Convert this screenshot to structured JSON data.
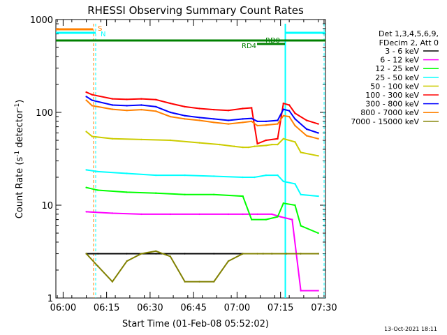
{
  "chart_data": {
    "type": "line",
    "title": "RHESSI Observing Summary Count Rates",
    "xlabel": "Start Time (01-Feb-08 05:52:02)",
    "ylabel_main": "Count Rate (s",
    "ylabel_sup1": "-1",
    "ylabel_mid": " detector",
    "ylabel_sup2": "-1",
    "ylabel_end": ")",
    "yscale": "log",
    "ylim": [
      1,
      1000
    ],
    "xlim_minutes": [
      5.5,
      98.5
    ],
    "x_ticks": [
      {
        "m": 8,
        "label": "06:00"
      },
      {
        "m": 23,
        "label": "06:15"
      },
      {
        "m": 38,
        "label": "06:30"
      },
      {
        "m": 53,
        "label": "06:45"
      },
      {
        "m": 68,
        "label": "07:00"
      },
      {
        "m": 83,
        "label": "07:15"
      },
      {
        "m": 98,
        "label": "07:30"
      }
    ],
    "y_ticks": [
      {
        "v": 1,
        "label": "1"
      },
      {
        "v": 10,
        "label": "10"
      },
      {
        "v": 100,
        "label": "100"
      },
      {
        "v": 1000,
        "label": "1000"
      }
    ],
    "legend_header": [
      "Det 1,3,4,5,6,9,",
      "FDecim 2, Att 0"
    ],
    "series": [
      {
        "name": "3 - 6 keV",
        "color": "#000000",
        "points": [
          [
            16,
            3.0
          ],
          [
            20,
            3.0
          ],
          [
            30,
            3.0
          ],
          [
            40,
            3.0
          ],
          [
            50,
            3.0
          ],
          [
            60,
            3.0
          ],
          [
            70,
            3.0
          ],
          [
            77,
            3.0
          ],
          [
            80,
            3.0
          ],
          [
            85,
            3.0
          ],
          [
            90,
            3.0
          ],
          [
            96,
            3.0
          ]
        ]
      },
      {
        "name": "6 - 12 keV",
        "color": "#ff00ff",
        "points": [
          [
            16,
            8.5
          ],
          [
            25,
            8.2
          ],
          [
            35,
            8.0
          ],
          [
            45,
            8.0
          ],
          [
            55,
            8.0
          ],
          [
            65,
            8.0
          ],
          [
            70,
            8.0
          ],
          [
            75,
            8.0
          ],
          [
            80,
            8.0
          ],
          [
            83,
            7.5
          ],
          [
            87,
            7.0
          ],
          [
            90,
            1.2
          ],
          [
            96,
            1.2
          ]
        ]
      },
      {
        "name": "12 - 25 keV",
        "color": "#00ff00",
        "points": [
          [
            16,
            15.5
          ],
          [
            20,
            14.5
          ],
          [
            30,
            13.8
          ],
          [
            40,
            13.5
          ],
          [
            50,
            13.0
          ],
          [
            60,
            13.0
          ],
          [
            70,
            12.5
          ],
          [
            73,
            7.0
          ],
          [
            78,
            7.0
          ],
          [
            82,
            7.5
          ],
          [
            84,
            10.5
          ],
          [
            88,
            10.0
          ],
          [
            90,
            6.0
          ],
          [
            96,
            5.0
          ]
        ]
      },
      {
        "name": "25 - 50 keV",
        "color": "#00ffff",
        "points": [
          [
            16,
            24
          ],
          [
            20,
            23
          ],
          [
            30,
            22
          ],
          [
            40,
            21
          ],
          [
            50,
            21
          ],
          [
            60,
            20.5
          ],
          [
            70,
            20
          ],
          [
            74,
            20
          ],
          [
            78,
            21
          ],
          [
            82,
            21
          ],
          [
            84,
            18
          ],
          [
            88,
            17
          ],
          [
            90,
            13
          ],
          [
            96,
            12.5
          ]
        ]
      },
      {
        "name": "50 - 100 keV",
        "color": "#cccc00",
        "points": [
          [
            16,
            62
          ],
          [
            18,
            55
          ],
          [
            25,
            52
          ],
          [
            35,
            51
          ],
          [
            45,
            50
          ],
          [
            55,
            47
          ],
          [
            62,
            45
          ],
          [
            67,
            43
          ],
          [
            70,
            42
          ],
          [
            72,
            42
          ],
          [
            74,
            43
          ],
          [
            78,
            44
          ],
          [
            80,
            45
          ],
          [
            82,
            45
          ],
          [
            84,
            52
          ],
          [
            88,
            48
          ],
          [
            90,
            37
          ],
          [
            96,
            34
          ]
        ]
      },
      {
        "name": "100 - 300 keV",
        "color": "#ff0000",
        "points": [
          [
            16,
            165
          ],
          [
            18,
            155
          ],
          [
            25,
            140
          ],
          [
            30,
            138
          ],
          [
            35,
            140
          ],
          [
            40,
            137
          ],
          [
            45,
            125
          ],
          [
            50,
            115
          ],
          [
            55,
            110
          ],
          [
            60,
            107
          ],
          [
            65,
            105
          ],
          [
            70,
            110
          ],
          [
            73,
            112
          ],
          [
            75,
            46
          ],
          [
            78,
            50
          ],
          [
            82,
            52
          ],
          [
            84,
            125
          ],
          [
            86,
            120
          ],
          [
            88,
            98
          ],
          [
            92,
            82
          ],
          [
            96,
            75
          ]
        ]
      },
      {
        "name": "300 - 800 keV",
        "color": "#0000ff",
        "points": [
          [
            16,
            148
          ],
          [
            18,
            135
          ],
          [
            25,
            120
          ],
          [
            30,
            118
          ],
          [
            35,
            120
          ],
          [
            40,
            115
          ],
          [
            45,
            100
          ],
          [
            50,
            92
          ],
          [
            55,
            88
          ],
          [
            60,
            85
          ],
          [
            65,
            82
          ],
          [
            70,
            85
          ],
          [
            73,
            86
          ],
          [
            75,
            80
          ],
          [
            78,
            80
          ],
          [
            82,
            82
          ],
          [
            84,
            108
          ],
          [
            86,
            104
          ],
          [
            88,
            85
          ],
          [
            92,
            66
          ],
          [
            96,
            60
          ]
        ]
      },
      {
        "name": "800 - 7000 keV",
        "color": "#ff8000",
        "points": [
          [
            16,
            135
          ],
          [
            18,
            118
          ],
          [
            25,
            108
          ],
          [
            30,
            105
          ],
          [
            35,
            107
          ],
          [
            40,
            103
          ],
          [
            45,
            90
          ],
          [
            50,
            85
          ],
          [
            55,
            82
          ],
          [
            60,
            78
          ],
          [
            65,
            75
          ],
          [
            70,
            78
          ],
          [
            73,
            80
          ],
          [
            75,
            72
          ],
          [
            78,
            73
          ],
          [
            82,
            75
          ],
          [
            84,
            92
          ],
          [
            86,
            90
          ],
          [
            88,
            72
          ],
          [
            92,
            56
          ],
          [
            96,
            52
          ]
        ]
      },
      {
        "name": "7000 - 15000 keV",
        "color": "#808000",
        "points": [
          [
            16,
            3.0
          ],
          [
            20,
            2.2
          ],
          [
            25,
            1.5
          ],
          [
            30,
            2.5
          ],
          [
            35,
            3.0
          ],
          [
            40,
            3.2
          ],
          [
            45,
            2.8
          ],
          [
            50,
            1.5
          ],
          [
            55,
            1.5
          ],
          [
            60,
            1.5
          ],
          [
            65,
            2.5
          ],
          [
            70,
            3.0
          ],
          [
            75,
            3.0
          ],
          [
            80,
            3.0
          ],
          [
            85,
            3.0
          ],
          [
            90,
            3.0
          ],
          [
            96,
            3.0
          ]
        ]
      }
    ],
    "flags": [
      {
        "label": "S",
        "color": "#ff8000"
      },
      {
        "label": "N",
        "color": "#00ffff"
      },
      {
        "label": "RD0",
        "color": "#008000"
      },
      {
        "label": "RD4",
        "color": "#008000"
      }
    ]
  },
  "footer": {
    "date_stamp": "13-Oct-2021 18:11"
  }
}
